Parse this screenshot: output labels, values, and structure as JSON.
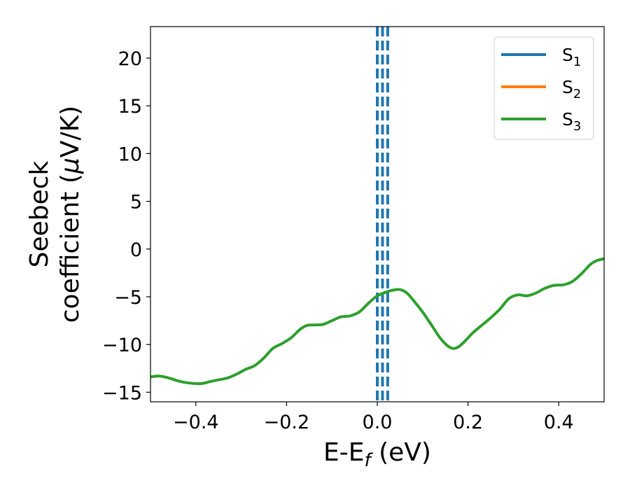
{
  "chart_data": {
    "type": "line",
    "xlabel": {
      "main": "E-E",
      "sub": "f",
      "suffix": " (eV)"
    },
    "ylabel": {
      "line1": "Seebeck",
      "line2_prefix": "coefficient  (",
      "line2_mu": "μ",
      "line2_suffix": "V/K)"
    },
    "xlim": [
      -0.5,
      0.5
    ],
    "ylim": [
      -16,
      23.3
    ],
    "x_ticks": [
      {
        "value": -0.4,
        "label": "−0.4"
      },
      {
        "value": -0.2,
        "label": "−0.2"
      },
      {
        "value": 0.0,
        "label": "0.0"
      },
      {
        "value": 0.2,
        "label": "0.2"
      },
      {
        "value": 0.4,
        "label": "0.4"
      }
    ],
    "y_ticks": [
      {
        "value": -15,
        "label": "−15"
      },
      {
        "value": -10,
        "label": "−10"
      },
      {
        "value": -5,
        "label": "−5"
      },
      {
        "value": 0,
        "label": "0"
      },
      {
        "value": 5,
        "label": "5"
      },
      {
        "value": 10,
        "label": "10"
      },
      {
        "value": 15,
        "label": "15"
      },
      {
        "value": 20,
        "label": "20"
      }
    ],
    "legend_position": "top-right",
    "series": [
      {
        "name": "S",
        "sub": "1",
        "color": "#1f77b4",
        "points": []
      },
      {
        "name": "S",
        "sub": "2",
        "color": "#ff7f0e",
        "points": []
      },
      {
        "name": "S",
        "sub": "3",
        "color": "#2ca02c",
        "points": [
          [
            -0.5,
            -13.4
          ],
          [
            -0.48,
            -13.3
          ],
          [
            -0.46,
            -13.5
          ],
          [
            -0.44,
            -13.8
          ],
          [
            -0.42,
            -14.0
          ],
          [
            -0.39,
            -14.1
          ],
          [
            -0.37,
            -13.9
          ],
          [
            -0.35,
            -13.7
          ],
          [
            -0.33,
            -13.5
          ],
          [
            -0.31,
            -13.1
          ],
          [
            -0.29,
            -12.6
          ],
          [
            -0.27,
            -12.2
          ],
          [
            -0.25,
            -11.4
          ],
          [
            -0.23,
            -10.4
          ],
          [
            -0.21,
            -9.9
          ],
          [
            -0.19,
            -9.3
          ],
          [
            -0.17,
            -8.4
          ],
          [
            -0.155,
            -8.0
          ],
          [
            -0.14,
            -7.95
          ],
          [
            -0.12,
            -7.9
          ],
          [
            -0.1,
            -7.5
          ],
          [
            -0.08,
            -7.1
          ],
          [
            -0.06,
            -7.0
          ],
          [
            -0.04,
            -6.6
          ],
          [
            -0.02,
            -5.7
          ],
          [
            0.0,
            -4.9
          ],
          [
            0.02,
            -4.5
          ],
          [
            0.035,
            -4.3
          ],
          [
            0.05,
            -4.25
          ],
          [
            0.065,
            -4.6
          ],
          [
            0.08,
            -5.4
          ],
          [
            0.1,
            -6.6
          ],
          [
            0.12,
            -8.0
          ],
          [
            0.14,
            -9.4
          ],
          [
            0.16,
            -10.3
          ],
          [
            0.175,
            -10.35
          ],
          [
            0.19,
            -9.8
          ],
          [
            0.21,
            -8.8
          ],
          [
            0.23,
            -8.0
          ],
          [
            0.25,
            -7.2
          ],
          [
            0.27,
            -6.3
          ],
          [
            0.29,
            -5.2
          ],
          [
            0.31,
            -4.8
          ],
          [
            0.33,
            -4.9
          ],
          [
            0.35,
            -4.6
          ],
          [
            0.37,
            -4.1
          ],
          [
            0.39,
            -3.8
          ],
          [
            0.41,
            -3.75
          ],
          [
            0.43,
            -3.4
          ],
          [
            0.45,
            -2.6
          ],
          [
            0.47,
            -1.6
          ],
          [
            0.485,
            -1.2
          ],
          [
            0.5,
            -1.0
          ]
        ]
      }
    ],
    "vertical_lines": [
      {
        "x": 0.0,
        "color": "#000000",
        "style": "dashed"
      },
      {
        "x": 0.0,
        "color": "#1f77b4",
        "style": "dashed"
      },
      {
        "x": 0.0115,
        "color": "#1f77b4",
        "style": "dashed"
      },
      {
        "x": 0.023,
        "color": "#1f77b4",
        "style": "dashed"
      }
    ]
  }
}
